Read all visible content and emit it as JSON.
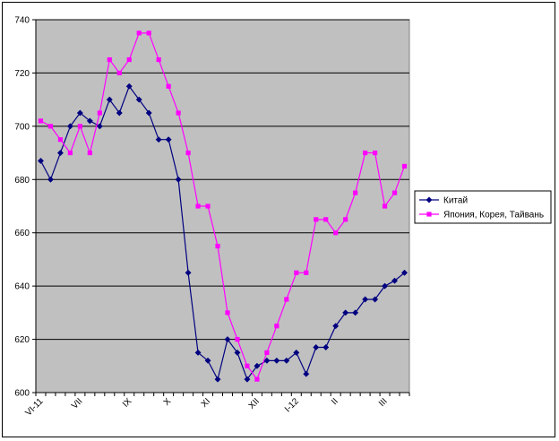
{
  "chart_data": {
    "type": "line",
    "title": "",
    "xlabel": "",
    "ylabel": "",
    "ylim": [
      600,
      740
    ],
    "y_ticks": [
      "600",
      "620",
      "640",
      "660",
      "680",
      "700",
      "720",
      "740"
    ],
    "x_tick_labels": [
      {
        "label": "VI-11",
        "index": 0
      },
      {
        "label": "VII",
        "index": 4
      },
      {
        "label": "IX",
        "index": 9
      },
      {
        "label": "X",
        "index": 13
      },
      {
        "label": "XI",
        "index": 17
      },
      {
        "label": "XII",
        "index": 22
      },
      {
        "label": "I-12",
        "index": 26
      },
      {
        "label": "II",
        "index": 30
      },
      {
        "label": "III",
        "index": 35
      }
    ],
    "grid": true,
    "plot_background": "#c0c0c0",
    "legend_position": "right",
    "series": [
      {
        "name": "Китай",
        "color": "#000080",
        "marker": "diamond",
        "values": [
          687,
          680,
          690,
          700,
          705,
          702,
          700,
          710,
          705,
          715,
          710,
          705,
          695,
          695,
          680,
          645,
          615,
          612,
          605,
          620,
          615,
          605,
          610,
          612,
          612,
          612,
          615,
          607,
          617,
          617,
          625,
          630,
          630,
          635,
          635,
          640,
          642,
          645
        ]
      },
      {
        "name": "Япония, Корея, Тайвань",
        "color": "#ff00ff",
        "marker": "square",
        "values": [
          702,
          700,
          695,
          690,
          700,
          690,
          705,
          725,
          720,
          725,
          735,
          735,
          725,
          715,
          705,
          690,
          670,
          670,
          655,
          630,
          620,
          610,
          605,
          615,
          625,
          635,
          645,
          645,
          665,
          665,
          660,
          665,
          675,
          690,
          690,
          670,
          675,
          685
        ]
      }
    ]
  }
}
